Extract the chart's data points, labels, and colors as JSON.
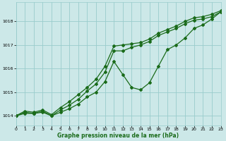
{
  "title": "Graphe pression niveau de la mer (hPa)",
  "background_color": "#cce8e8",
  "grid_color": "#99cccc",
  "line_color": "#1a6b1a",
  "x_min": 0,
  "x_max": 23,
  "y_min": 1013.6,
  "y_max": 1018.8,
  "yticks": [
    1014,
    1015,
    1016,
    1017,
    1018
  ],
  "xticks": [
    0,
    1,
    2,
    3,
    4,
    5,
    6,
    7,
    8,
    9,
    10,
    11,
    12,
    13,
    14,
    15,
    16,
    17,
    18,
    19,
    20,
    21,
    22,
    23
  ],
  "series1": {
    "x": [
      0,
      1,
      2,
      3,
      4,
      5,
      6,
      7,
      8,
      9,
      10,
      11,
      12,
      13,
      14,
      15,
      16,
      17,
      18,
      19,
      20,
      21,
      22,
      23
    ],
    "y": [
      1014.0,
      1014.2,
      1014.15,
      1014.25,
      1014.05,
      1014.35,
      1014.6,
      1014.9,
      1015.2,
      1015.55,
      1016.1,
      1016.95,
      1017.0,
      1017.05,
      1017.1,
      1017.25,
      1017.5,
      1017.65,
      1017.8,
      1018.0,
      1018.15,
      1018.2,
      1018.3,
      1018.45
    ]
  },
  "series2": {
    "x": [
      0,
      1,
      2,
      3,
      4,
      5,
      6,
      7,
      8,
      9,
      10,
      11,
      12,
      13,
      14,
      15,
      16,
      17,
      18,
      19,
      20,
      21,
      22,
      23
    ],
    "y": [
      1014.0,
      1014.15,
      1014.1,
      1014.2,
      1014.0,
      1014.25,
      1014.45,
      1014.7,
      1015.05,
      1015.35,
      1015.85,
      1016.75,
      1016.75,
      1016.9,
      1017.0,
      1017.15,
      1017.4,
      1017.55,
      1017.7,
      1017.9,
      1018.05,
      1018.1,
      1018.2,
      1018.4
    ]
  },
  "series3": {
    "x": [
      0,
      1,
      2,
      3,
      4,
      5,
      6,
      7,
      8,
      9,
      10,
      11,
      12,
      13,
      14,
      15,
      16,
      17,
      18,
      19,
      20,
      21,
      22,
      23
    ],
    "y": [
      1014.0,
      1014.1,
      1014.1,
      1014.15,
      1014.0,
      1014.15,
      1014.3,
      1014.5,
      1014.8,
      1015.0,
      1015.45,
      1016.3,
      1015.75,
      1015.2,
      1015.1,
      1015.4,
      1016.1,
      1016.8,
      1017.0,
      1017.3,
      1017.7,
      1017.85,
      1018.1,
      1018.4
    ]
  }
}
